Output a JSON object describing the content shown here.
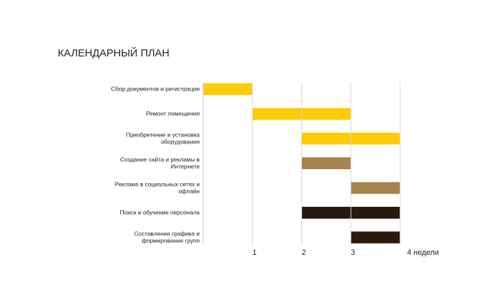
{
  "chart_data": {
    "type": "gantt",
    "title": "КАЛЕНДАРНЫЙ  ПЛАН",
    "tasks": [
      {
        "name": [
          "Сбор документов и регистрация"
        ],
        "start": 0,
        "end": 1,
        "color": "#fccc0a"
      },
      {
        "name": [
          "Ремонт помещения"
        ],
        "start": 1,
        "end": 3,
        "color": "#fccc0a"
      },
      {
        "name": [
          "Приобретение и установка",
          "оборудования"
        ],
        "start": 2,
        "end": 4,
        "color": "#fccc0a"
      },
      {
        "name": [
          "Создание сайта  и рекламы в",
          "Интернете"
        ],
        "start": 2,
        "end": 3,
        "color": "#a8834f"
      },
      {
        "name": [
          "Реклама в социальных сетях и",
          "офлайн"
        ],
        "start": 3,
        "end": 4,
        "color": "#a8834f"
      },
      {
        "name": [
          "Поиск и обучение персонала"
        ],
        "start": 2,
        "end": 4,
        "color": "#2a1a0e"
      },
      {
        "name": [
          "Составление графика и",
          "формирование групп"
        ],
        "start": 3,
        "end": 4,
        "color": "#2a1a0e"
      }
    ],
    "xlim": [
      0,
      4
    ],
    "xticks": [
      1,
      2,
      3,
      {
        "value": 4,
        "label": "4 недели"
      }
    ],
    "grid": true
  }
}
